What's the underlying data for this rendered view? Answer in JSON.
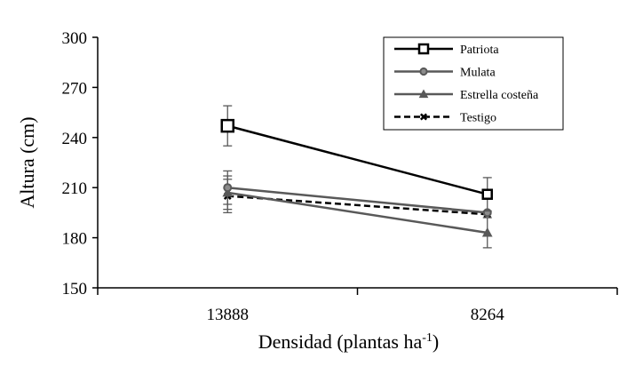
{
  "chart_data": {
    "type": "line",
    "categories": [
      "13888",
      "8264"
    ],
    "xlabel": "Densidad (plantas ha",
    "xlabel_sup": "-1",
    "xlabel_end": ")",
    "ylabel": "Altura (cm)",
    "ylim": [
      150,
      300
    ],
    "yticks": [
      150,
      180,
      210,
      240,
      270,
      300
    ],
    "ytick_labels": [
      "150",
      "180",
      "210",
      "240",
      "270",
      "300"
    ],
    "grid": false,
    "legend_position": "top-right",
    "series": [
      {
        "name": "Patriota",
        "values": [
          247,
          206
        ],
        "errors": [
          12,
          10
        ],
        "color": "#000000",
        "marker": "square",
        "dash": false
      },
      {
        "name": "Mulata",
        "values": [
          210,
          195
        ],
        "errors": [
          10,
          0
        ],
        "color": "#595959",
        "marker": "circle",
        "dash": false
      },
      {
        "name": "Estrella costeña",
        "values": [
          207,
          183
        ],
        "errors": [
          10,
          9
        ],
        "color": "#595959",
        "marker": "triangle",
        "dash": false
      },
      {
        "name": "Testigo",
        "values": [
          205,
          194
        ],
        "errors": [
          10,
          0
        ],
        "color": "#000000",
        "marker": "x",
        "dash": true
      }
    ]
  }
}
